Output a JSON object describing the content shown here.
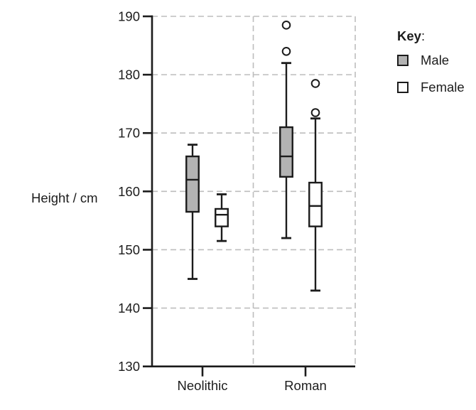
{
  "legend": {
    "title": "Key",
    "title_suffix": ":",
    "items": [
      {
        "label": "Male",
        "fill": "#b3b3b3"
      },
      {
        "label": "Female",
        "fill": "#ffffff"
      }
    ]
  },
  "chart_data": {
    "type": "boxplot",
    "title": "",
    "xlabel": "",
    "ylabel": "Height / cm",
    "ylim": [
      130,
      190
    ],
    "y_ticks": [
      130,
      140,
      150,
      160,
      170,
      180,
      190
    ],
    "grid": "dashed light-gray horizontal lines at 140-190; dashed vertical separators between categories and at right edge",
    "legend_position": "top-right outside plot",
    "categories": [
      "Neolithic",
      "Roman"
    ],
    "colors": {
      "line": "#1c1c1c",
      "grid": "#bdbdbd",
      "male_fill": "#b3b3b3",
      "female_fill": "#ffffff"
    },
    "series": [
      {
        "name": "Male",
        "fill": "#b3b3b3",
        "boxes": [
          {
            "category": "Neolithic",
            "whisker_low": 145,
            "q1": 156.5,
            "median": 162,
            "q3": 166,
            "whisker_high": 168,
            "outliers": []
          },
          {
            "category": "Roman",
            "whisker_low": 152,
            "q1": 162.5,
            "median": 166,
            "q3": 171,
            "whisker_high": 182,
            "outliers": [
              184,
              188.5
            ]
          }
        ]
      },
      {
        "name": "Female",
        "fill": "#ffffff",
        "boxes": [
          {
            "category": "Neolithic",
            "whisker_low": 151.5,
            "q1": 154,
            "median": 156,
            "q3": 157,
            "whisker_high": 159.5,
            "outliers": []
          },
          {
            "category": "Roman",
            "whisker_low": 143,
            "q1": 154,
            "median": 157.5,
            "q3": 161.5,
            "whisker_high": 172.5,
            "outliers": [
              173.5,
              178.5
            ]
          }
        ]
      }
    ]
  }
}
